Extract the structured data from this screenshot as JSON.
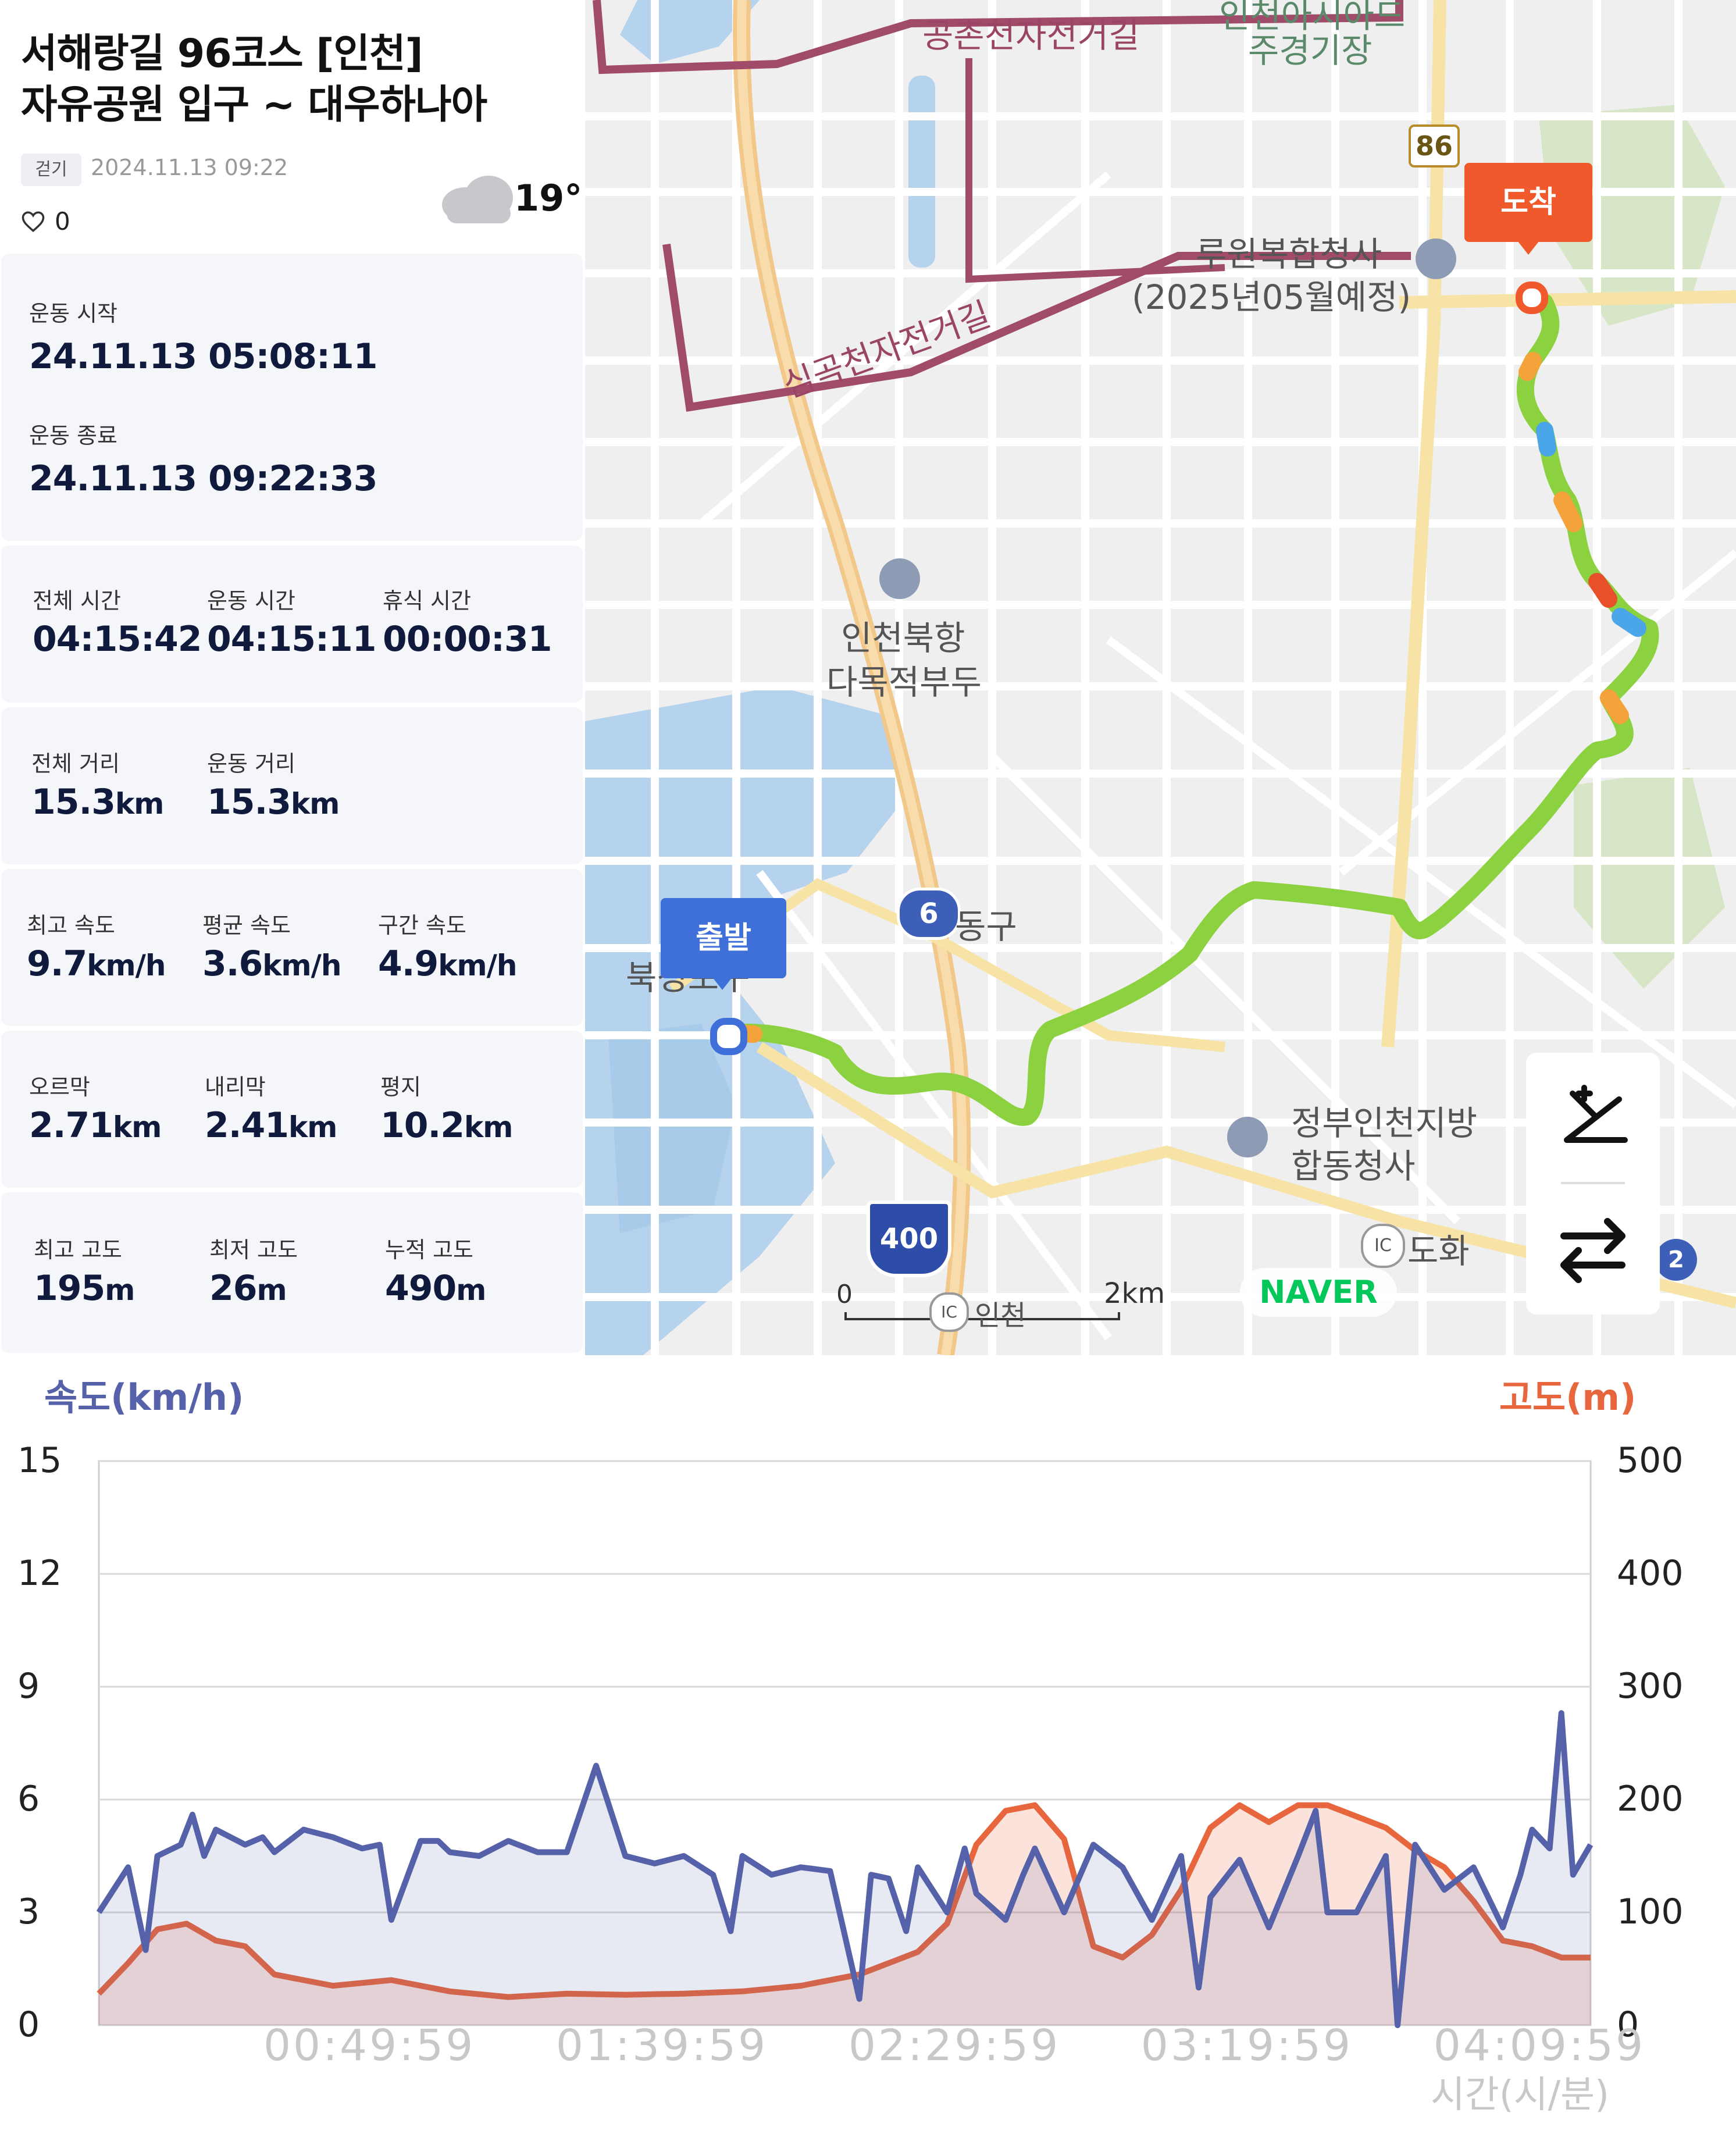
{
  "header": {
    "title_line1": "서해랑길 96코스 [인천]",
    "title_line2": "자유공원 입구 ~ 대우하나아",
    "tag": "걷기",
    "date": "2024.11.13 09:22",
    "likes": "0",
    "like_icon": "heart-outline-icon",
    "weather_icon": "cloud-icon",
    "temperature": "19°"
  },
  "times": {
    "start_label": "운동 시작",
    "start_value": "24.11.13 05:08:11",
    "end_label": "운동 종료",
    "end_value": "24.11.13 09:22:33"
  },
  "durations": [
    {
      "label": "전체 시간",
      "value": "04:15:42"
    },
    {
      "label": "운동 시간",
      "value": "04:15:11"
    },
    {
      "label": "휴식 시간",
      "value": "00:00:31"
    }
  ],
  "distances": [
    {
      "label": "전체 거리",
      "value": "15.3",
      "unit": "km"
    },
    {
      "label": "운동 거리",
      "value": "15.3",
      "unit": "km"
    }
  ],
  "speeds": [
    {
      "label": "최고 속도",
      "value": "9.7",
      "unit": "km/h"
    },
    {
      "label": "평균 속도",
      "value": "3.6",
      "unit": "km/h"
    },
    {
      "label": "구간 속도",
      "value": "4.9",
      "unit": "km/h"
    }
  ],
  "slopes": [
    {
      "label": "오르막",
      "value": "2.71",
      "unit": "km"
    },
    {
      "label": "내리막",
      "value": "2.41",
      "unit": "km"
    },
    {
      "label": "평지",
      "value": "10.2",
      "unit": "km"
    }
  ],
  "altitudes": [
    {
      "label": "최고 고도",
      "value": "195",
      "unit": "m"
    },
    {
      "label": "최저 고도",
      "value": "26",
      "unit": "m"
    },
    {
      "label": "누적 고도",
      "value": "490",
      "unit": "m"
    }
  ],
  "map": {
    "labels": {
      "bike_path_top": "공촌천자전거길",
      "bike_path_mid": "심곡천자전거길",
      "top_partial_1": "인천아시아드",
      "top_partial_2": "주경기장",
      "road_86": "86",
      "complex_1": "루원복합청사",
      "complex_2": "(2025년05월예정)",
      "port_1": "인천북항",
      "port_2": "다목적부두",
      "road_6": "6",
      "district": "동구",
      "bukseong": "북성포구",
      "gov_1": "정부인천지방",
      "gov_2": "합동청사",
      "ic_label": "IC",
      "dohwa": "도화",
      "highway_400": "400",
      "incheon": "인천",
      "scale_zero": "0",
      "scale_two": "2km",
      "naver": "NAVER",
      "right_edge_badge": "2"
    },
    "start_pin": "출발",
    "end_pin": "도착",
    "start_color": "#3f6fd8",
    "end_color": "#f0592b",
    "route_color": "#8bd140",
    "controls": [
      "slope-toggle-icon",
      "swap-icon"
    ]
  },
  "chart_data": {
    "type": "line",
    "left_axis_label": "속도(km/h)",
    "right_axis_label": "고도(m)",
    "x_axis_label": "시간(시/분)",
    "x_ticks": [
      "00:49:59",
      "01:39:59",
      "02:29:59",
      "03:19:59",
      "04:09:59"
    ],
    "left_ticks": [
      "0",
      "3",
      "6",
      "9",
      "12",
      "15"
    ],
    "right_ticks": [
      "0",
      "100",
      "200",
      "300",
      "400",
      "500"
    ],
    "ylim_left": [
      0,
      15
    ],
    "ylim_right": [
      0,
      500
    ],
    "series": [
      {
        "name": "속도(km/h)",
        "color": "#5561a8",
        "x_minutes": [
          0,
          5,
          8,
          10,
          14,
          16,
          18,
          20,
          25,
          28,
          30,
          35,
          40,
          45,
          48,
          50,
          55,
          58,
          60,
          65,
          70,
          75,
          80,
          85,
          90,
          95,
          100,
          105,
          108,
          110,
          115,
          120,
          125,
          130,
          132,
          135,
          138,
          140,
          145,
          148,
          150,
          155,
          158,
          160,
          165,
          170,
          175,
          180,
          185,
          188,
          190,
          195,
          200,
          205,
          208,
          210,
          215,
          220,
          222,
          225,
          230,
          235,
          240,
          243,
          245,
          248,
          250,
          252,
          255
        ],
        "values": [
          3.0,
          4.2,
          2.0,
          4.5,
          4.8,
          5.6,
          4.5,
          5.2,
          4.8,
          5.0,
          4.6,
          5.2,
          5.0,
          4.7,
          4.8,
          2.8,
          4.9,
          4.9,
          4.6,
          4.5,
          4.9,
          4.6,
          4.6,
          6.9,
          4.5,
          4.3,
          4.5,
          4.0,
          2.5,
          4.5,
          4.0,
          4.2,
          4.1,
          0.7,
          4.0,
          3.9,
          2.5,
          4.2,
          3.0,
          4.7,
          3.5,
          2.8,
          4.0,
          4.7,
          3.0,
          4.8,
          4.2,
          2.8,
          4.5,
          1.0,
          3.4,
          4.4,
          2.6,
          4.5,
          5.7,
          3.0,
          3.0,
          4.5,
          0.0,
          4.8,
          3.6,
          4.2,
          2.6,
          4.0,
          5.2,
          4.7,
          8.3,
          4.0,
          4.8
        ]
      },
      {
        "name": "고도(m)",
        "color": "#e8663d",
        "x_minutes": [
          0,
          5,
          10,
          15,
          20,
          25,
          30,
          40,
          50,
          60,
          70,
          80,
          90,
          100,
          110,
          120,
          130,
          140,
          145,
          150,
          155,
          160,
          165,
          170,
          175,
          180,
          185,
          190,
          195,
          200,
          205,
          210,
          215,
          220,
          225,
          230,
          235,
          240,
          245,
          250,
          255
        ],
        "values": [
          28,
          55,
          85,
          90,
          75,
          70,
          45,
          35,
          40,
          30,
          25,
          28,
          27,
          28,
          30,
          35,
          45,
          65,
          90,
          160,
          190,
          195,
          165,
          70,
          60,
          80,
          120,
          175,
          195,
          180,
          195,
          195,
          185,
          175,
          155,
          140,
          110,
          75,
          70,
          60,
          60
        ]
      }
    ]
  }
}
